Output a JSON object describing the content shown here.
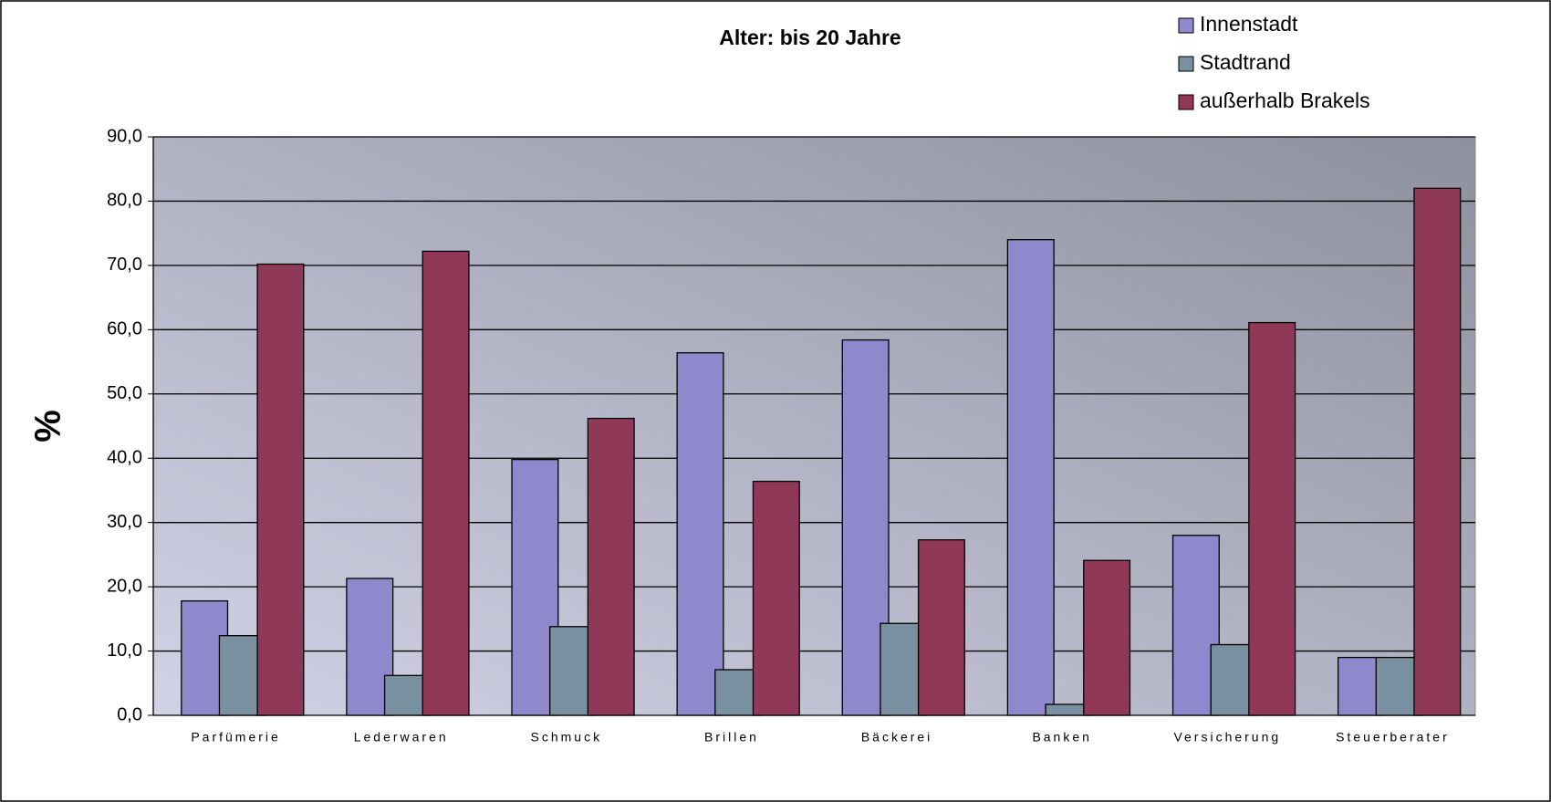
{
  "chart_data": {
    "type": "bar",
    "title": "Alter: bis 20 Jahre",
    "ylabel": "%",
    "categories": [
      "Parfümerie",
      "Lederwaren",
      "Schmuck",
      "Brillen",
      "Bäckerei",
      "Banken",
      "Versicherung",
      "Steuerberater"
    ],
    "series": [
      {
        "name": "Innenstadt",
        "color": "#9088cc",
        "values": [
          17.8,
          21.3,
          39.8,
          56.4,
          58.4,
          74.0,
          28.0,
          9.0
        ]
      },
      {
        "name": "Stadtrand",
        "color": "#7890a0",
        "values": [
          12.4,
          6.2,
          13.8,
          7.1,
          14.3,
          1.7,
          11.0,
          9.0
        ]
      },
      {
        "name": "außerhalb Brakels",
        "color": "#903858",
        "values": [
          70.2,
          72.2,
          46.2,
          36.4,
          27.3,
          24.1,
          61.1,
          82.0
        ]
      }
    ],
    "ylim": [
      0,
      90
    ],
    "yticks": [
      {
        "value": 0,
        "label": "0,0"
      },
      {
        "value": 10,
        "label": "10,0"
      },
      {
        "value": 20,
        "label": "20,0"
      },
      {
        "value": 30,
        "label": "30,0"
      },
      {
        "value": 40,
        "label": "40,0"
      },
      {
        "value": 50,
        "label": "50,0"
      },
      {
        "value": 60,
        "label": "60,0"
      },
      {
        "value": 70,
        "label": "70,0"
      },
      {
        "value": 80,
        "label": "80,0"
      },
      {
        "value": 90,
        "label": "90,0"
      }
    ],
    "grid": true,
    "legend": "top-right"
  }
}
